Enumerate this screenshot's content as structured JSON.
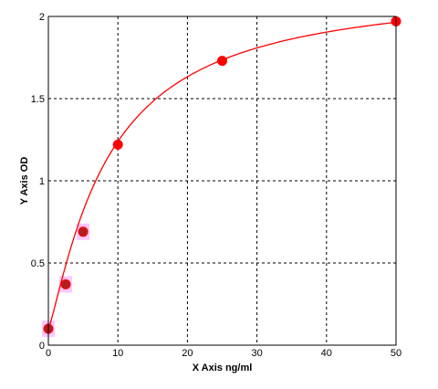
{
  "chart_data": {
    "type": "scatter",
    "title": "",
    "xlabel": "X Axis ng/ml",
    "ylabel": "Y Axis OD",
    "xlim": [
      0,
      50
    ],
    "ylim": [
      0,
      2
    ],
    "x_ticks": [
      0,
      10,
      20,
      30,
      40,
      50
    ],
    "y_ticks": [
      0,
      0.5,
      1,
      1.5,
      2
    ],
    "x_tick_labels": [
      "0",
      "10",
      "20",
      "30",
      "40",
      "50"
    ],
    "y_tick_labels": [
      "0",
      "0.5",
      "1",
      "1.5",
      "2"
    ],
    "grid": true,
    "series": [
      {
        "x": [
          0,
          2.5,
          5,
          10,
          25,
          50
        ],
        "y": [
          0.1,
          0.37,
          0.69,
          1.22,
          1.73,
          1.97
        ]
      }
    ],
    "fit_curve": {
      "type": "4PL",
      "bottom": 0.1,
      "top": 2.19,
      "ec50": 8.6,
      "hill": 1.2
    },
    "colors": {
      "points": "#ff0000",
      "curve": "#ff0000",
      "highlight": "#ff99ff",
      "grid": "#000000"
    }
  }
}
